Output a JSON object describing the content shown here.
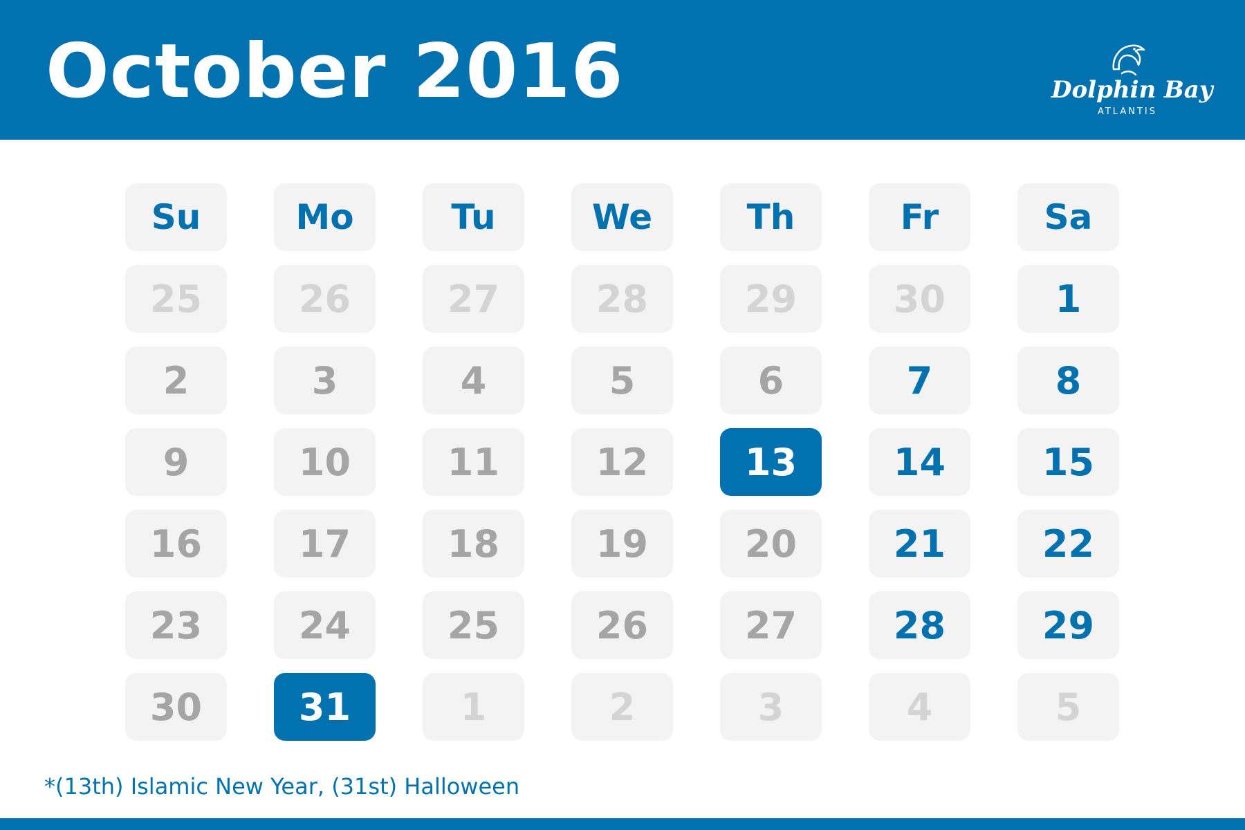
{
  "title": "October 2016",
  "logo": {
    "icon": "dolphin-icon",
    "name": "Dolphin Bay",
    "sub": "ATLANTIS"
  },
  "weekdays": [
    "Su",
    "Mo",
    "Tu",
    "We",
    "Th",
    "Fr",
    "Sa"
  ],
  "days": [
    {
      "label": "25",
      "type": "muted"
    },
    {
      "label": "26",
      "type": "muted"
    },
    {
      "label": "27",
      "type": "muted"
    },
    {
      "label": "28",
      "type": "muted"
    },
    {
      "label": "29",
      "type": "muted"
    },
    {
      "label": "30",
      "type": "muted"
    },
    {
      "label": "1",
      "type": "weekend"
    },
    {
      "label": "2",
      "type": "normal"
    },
    {
      "label": "3",
      "type": "normal"
    },
    {
      "label": "4",
      "type": "normal"
    },
    {
      "label": "5",
      "type": "normal"
    },
    {
      "label": "6",
      "type": "normal"
    },
    {
      "label": "7",
      "type": "weekend"
    },
    {
      "label": "8",
      "type": "weekend"
    },
    {
      "label": "9",
      "type": "normal"
    },
    {
      "label": "10",
      "type": "normal"
    },
    {
      "label": "11",
      "type": "normal"
    },
    {
      "label": "12",
      "type": "normal"
    },
    {
      "label": "13",
      "type": "holiday"
    },
    {
      "label": "14",
      "type": "weekend"
    },
    {
      "label": "15",
      "type": "weekend"
    },
    {
      "label": "16",
      "type": "normal"
    },
    {
      "label": "17",
      "type": "normal"
    },
    {
      "label": "18",
      "type": "normal"
    },
    {
      "label": "19",
      "type": "normal"
    },
    {
      "label": "20",
      "type": "normal"
    },
    {
      "label": "21",
      "type": "weekend"
    },
    {
      "label": "22",
      "type": "weekend"
    },
    {
      "label": "23",
      "type": "normal"
    },
    {
      "label": "24",
      "type": "normal"
    },
    {
      "label": "25",
      "type": "normal"
    },
    {
      "label": "26",
      "type": "normal"
    },
    {
      "label": "27",
      "type": "normal"
    },
    {
      "label": "28",
      "type": "weekend"
    },
    {
      "label": "29",
      "type": "weekend"
    },
    {
      "label": "30",
      "type": "normal"
    },
    {
      "label": "31",
      "type": "holiday"
    },
    {
      "label": "1",
      "type": "muted"
    },
    {
      "label": "2",
      "type": "muted"
    },
    {
      "label": "3",
      "type": "muted"
    },
    {
      "label": "4",
      "type": "muted"
    },
    {
      "label": "5",
      "type": "muted"
    }
  ],
  "footnote": "*(13th) Islamic New Year, (31st) Halloween",
  "colors": {
    "brand": "#0171b0",
    "cell_bg": "#f3f3f3",
    "day_text": "#a5a5a5",
    "out_of_month_text": "#d4d4d4"
  }
}
